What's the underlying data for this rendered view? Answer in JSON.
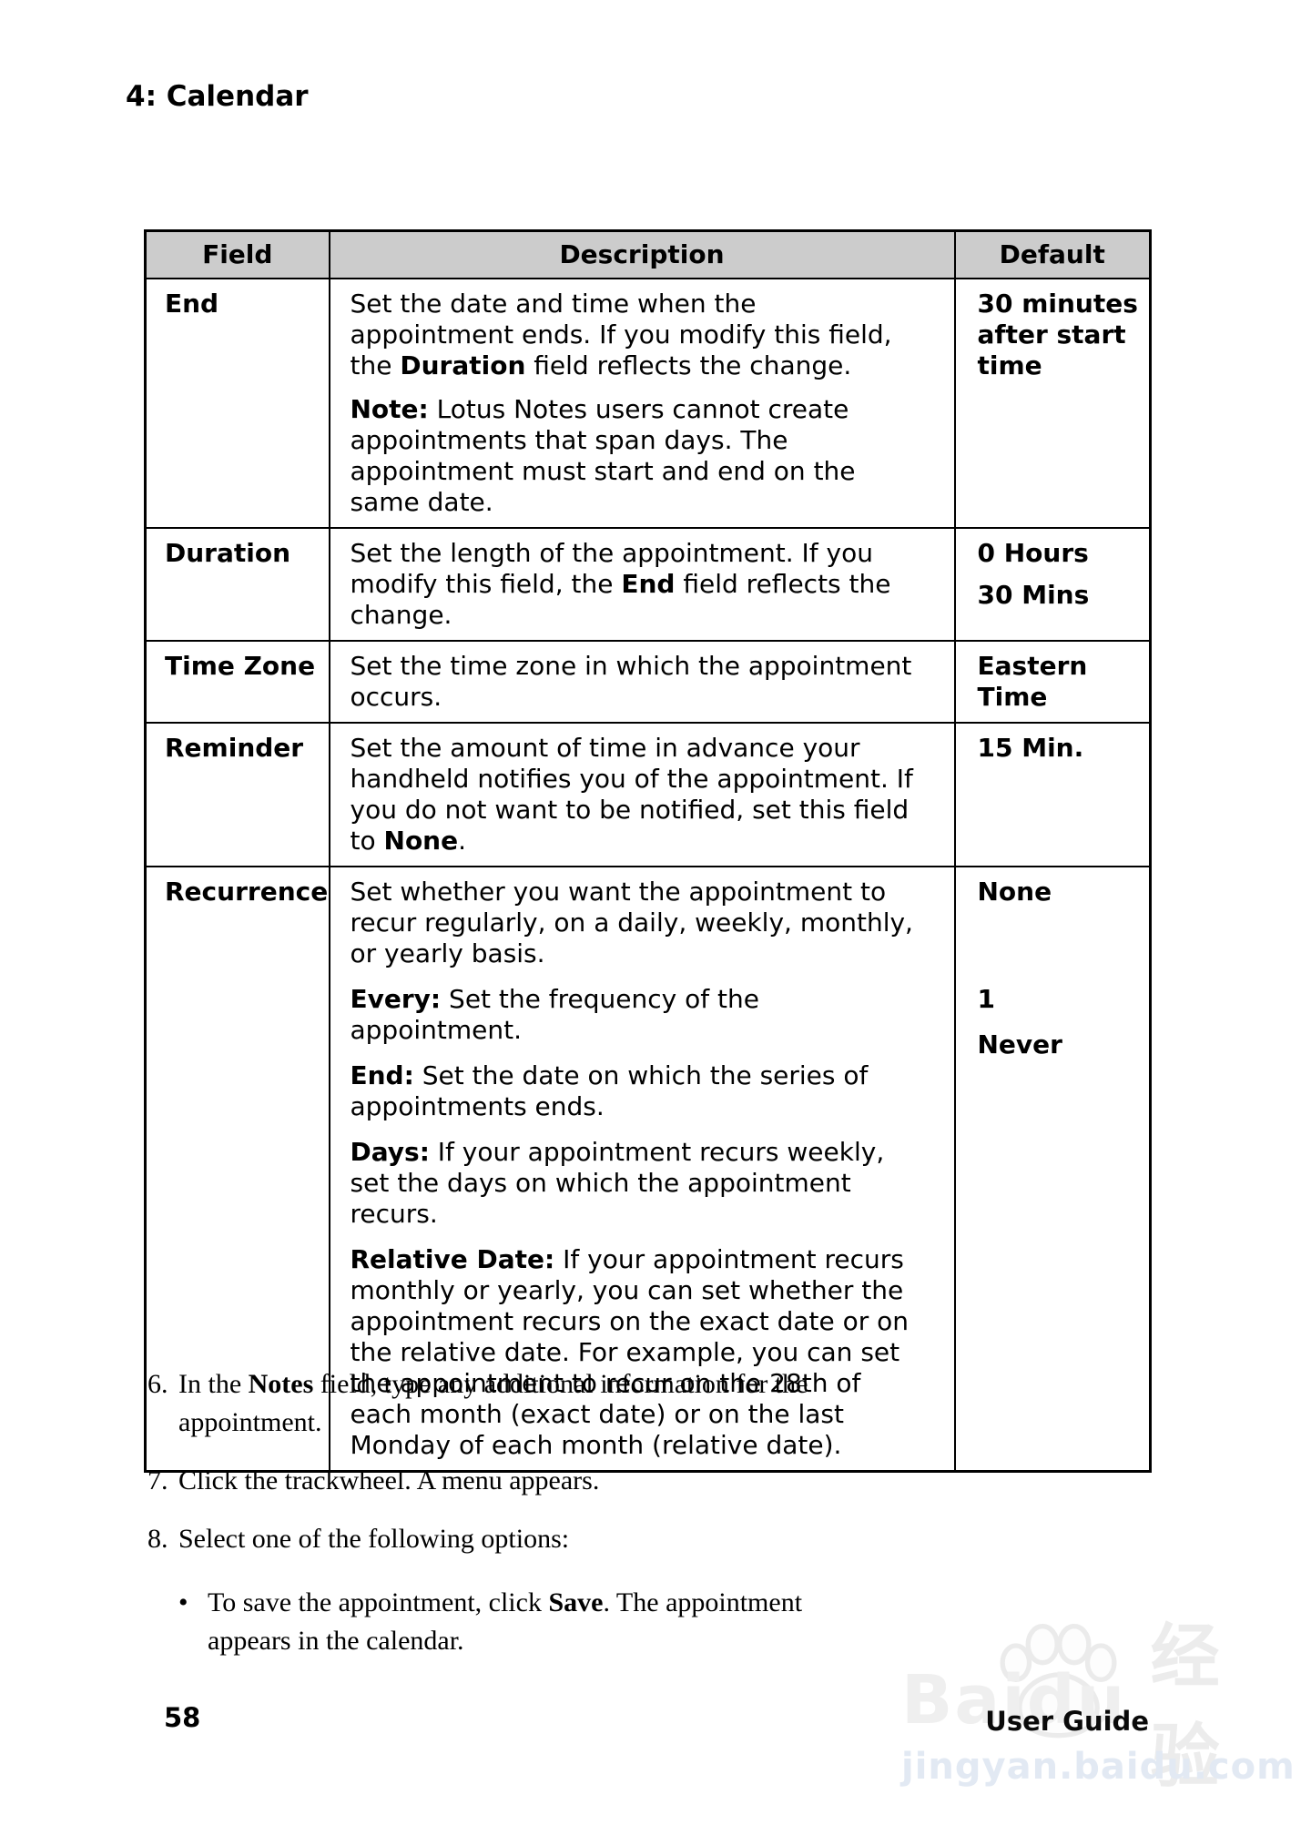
{
  "colors": {
    "table_header_bg": "#cccccc",
    "border": "#000000",
    "watermark_gray": "#efefef",
    "watermark_url_blue": "#e2e9f3"
  },
  "page": {
    "chapter_title": "4: Calendar",
    "page_number": "58",
    "footer_right": "User Guide"
  },
  "table": {
    "headers": [
      "Field",
      "Description",
      "Default"
    ],
    "rows": [
      {
        "key": "end",
        "field": "End",
        "description": [
          [
            {
              "t": "Set the date and time when the appointment ends. If you modify this field, the "
            },
            {
              "t": "Duration",
              "b": true
            },
            {
              "t": " field reflects the change."
            }
          ],
          [
            {
              "t": "Note:",
              "b": true
            },
            {
              "t": " Lotus Notes users cannot create appointments that span days. The appointment must start and end on the same date."
            }
          ]
        ],
        "default": [
          [
            {
              "t": "30 minutes after start time",
              "b": true
            }
          ]
        ]
      },
      {
        "key": "duration",
        "field": "Duration",
        "description": [
          [
            {
              "t": "Set the length of the appointment. If you modify this field, the "
            },
            {
              "t": "End",
              "b": true
            },
            {
              "t": " field reflects the change."
            }
          ]
        ],
        "default": [
          [
            {
              "t": "0 Hours",
              "b": true
            }
          ],
          [
            {
              "t": "30 Mins",
              "b": true
            }
          ]
        ]
      },
      {
        "key": "timezone",
        "field": "Time Zone",
        "description": [
          [
            {
              "t": "Set the time zone in which the appointment occurs."
            }
          ]
        ],
        "default": [
          [
            {
              "t": "Eastern Time",
              "b": true
            }
          ]
        ]
      },
      {
        "key": "reminder",
        "field": "Reminder",
        "description": [
          [
            {
              "t": "Set the amount of time in advance your handheld notifies you of the appointment. If you do not want to be notified, set this field to "
            },
            {
              "t": "None",
              "b": true
            },
            {
              "t": "."
            }
          ]
        ],
        "default": [
          [
            {
              "t": "15 Min.",
              "b": true
            }
          ]
        ]
      },
      {
        "key": "recurrence",
        "field": "Recurrence",
        "description": [
          [
            {
              "t": "Set whether you want the appointment to recur regularly, on a daily, weekly, monthly, or yearly basis."
            }
          ],
          [
            {
              "t": "Every:",
              "b": true
            },
            {
              "t": " Set the frequency of the appointment."
            }
          ],
          [
            {
              "t": "End:",
              "b": true
            },
            {
              "t": " Set the date on which the series of appointments ends."
            }
          ],
          [
            {
              "t": "Days:",
              "b": true
            },
            {
              "t": " If your appointment recurs weekly, set the days on which the appointment recurs."
            }
          ],
          [
            {
              "t": "Relative Date:",
              "b": true
            },
            {
              "t": " If your appointment recurs monthly or yearly, you can set whether the appointment recurs on the exact date or on the relative date. For example, you can set the appointment to recur on the 28th of each month (exact date) or on the last Monday of each month (relative date)."
            }
          ]
        ],
        "default": [
          [
            {
              "t": "None",
              "b": true
            }
          ],
          [
            {
              "t": "1",
              "b": true
            }
          ],
          [
            {
              "t": "Never",
              "b": true
            }
          ]
        ]
      }
    ]
  },
  "steps": [
    {
      "num": "6.",
      "text": [
        {
          "t": "In the "
        },
        {
          "t": "Notes",
          "b": true
        },
        {
          "t": " field, type any additional information for the appointment."
        }
      ]
    },
    {
      "num": "7.",
      "text": [
        {
          "t": "Click the trackwheel. A menu appears."
        }
      ]
    },
    {
      "num": "8.",
      "text": [
        {
          "t": "Select one of the following options:"
        }
      ]
    }
  ],
  "bullet": {
    "marker": "•",
    "text": [
      {
        "t": "To save the appointment, click "
      },
      {
        "t": "Save",
        "b": true
      },
      {
        "t": ". The appointment appears in the calendar."
      }
    ]
  },
  "watermark": {
    "brand": "Baidu",
    "brand_cn": "经验",
    "url": "jingyan.baidu.com",
    "paw_icon": "paw-icon"
  }
}
